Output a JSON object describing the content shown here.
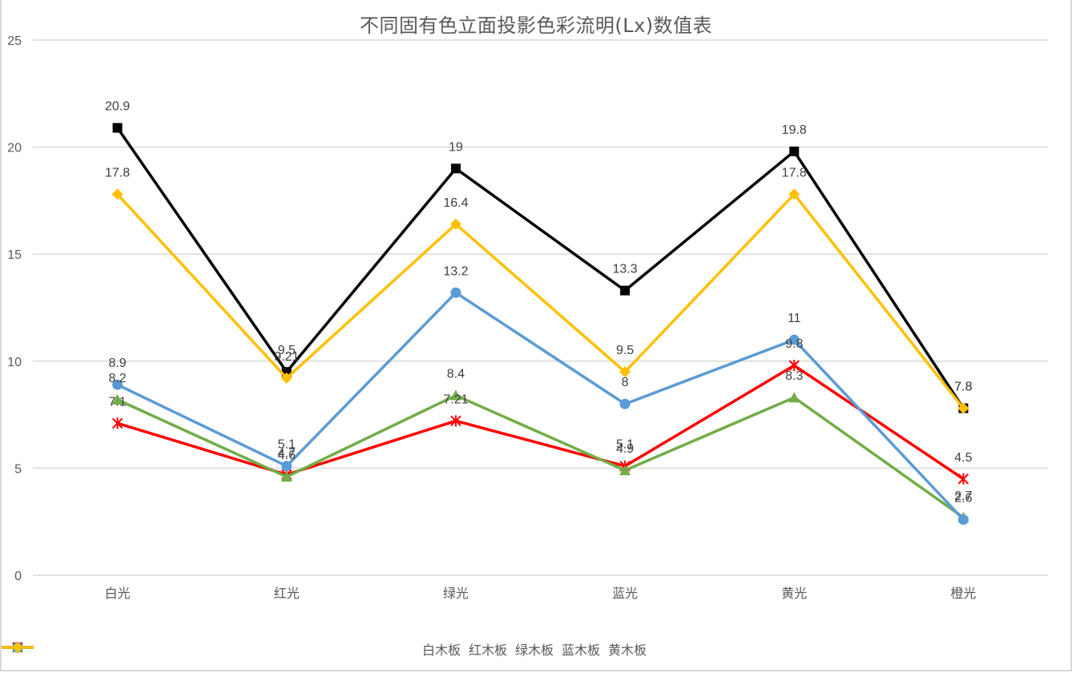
{
  "chart_data": {
    "type": "line",
    "title": "不同固有色立面投影色彩流明(Lx)数值表",
    "xlabel": "",
    "ylabel": "",
    "ylim": [
      0,
      25
    ],
    "yticks": [
      0,
      5,
      10,
      15,
      20,
      25
    ],
    "grid": true,
    "legend_position": "bottom",
    "categories": [
      "白光",
      "红光",
      "绿光",
      "蓝光",
      "黄光",
      "橙光"
    ],
    "series": [
      {
        "name": "白木板",
        "color": "#000000",
        "marker": "square",
        "values": [
          20.9,
          9.5,
          19,
          13.3,
          19.8,
          7.8
        ]
      },
      {
        "name": "红木板",
        "color": "#ff0000",
        "marker": "star",
        "values": [
          7.1,
          4.7,
          7.21,
          5.1,
          9.8,
          4.5
        ]
      },
      {
        "name": "绿木板",
        "color": "#70ad47",
        "marker": "triangle",
        "values": [
          8.2,
          4.6,
          8.4,
          4.9,
          8.3,
          2.7
        ]
      },
      {
        "name": "蓝木板",
        "color": "#5b9bd5",
        "marker": "circle",
        "values": [
          8.9,
          5.1,
          13.2,
          8,
          11,
          2.6
        ]
      },
      {
        "name": "黄木板",
        "color": "#ffc000",
        "marker": "diamond",
        "values": [
          17.8,
          9.21,
          16.4,
          9.5,
          17.8,
          7.8
        ]
      }
    ]
  }
}
